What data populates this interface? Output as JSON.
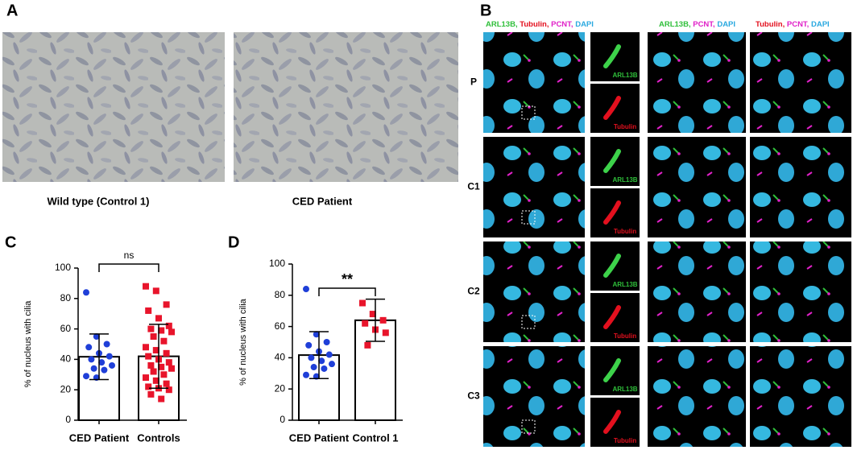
{
  "figure": {
    "panels": [
      "A",
      "B",
      "C",
      "D"
    ],
    "captions": [
      "Wild type (Control 1)",
      "CED Patient"
    ],
    "headers": [
      [
        "ARL13B,",
        "Tubulin,",
        "PCNT,",
        "DAPI"
      ],
      [
        "ARL13B,",
        "PCNT,",
        "DAPI"
      ],
      [
        "Tubulin,",
        "PCNT,",
        "DAPI"
      ]
    ],
    "rows": [
      {
        "label": "P",
        "inset_top": "ARL13B",
        "inset_bottom": "Tubulin"
      },
      {
        "label": "C1",
        "inset_top": "ARL13B",
        "inset_bottom": "Tubulin"
      },
      {
        "label": "C2",
        "inset_top": "ARL13B",
        "inset_bottom": "Tubulin"
      },
      {
        "label": "C3",
        "inset_top": "ARL13B",
        "inset_bottom": "Tubulin"
      }
    ]
  },
  "chart_data": [
    {
      "type": "bar",
      "ylabel": "% of nucleus with cilia",
      "categories": [
        "CED Patient",
        "Controls"
      ],
      "values": [
        41.7,
        42
      ],
      "errors": [
        15,
        21
      ],
      "points": [
        [
          84,
          55,
          50,
          48,
          44,
          42,
          40,
          38,
          36,
          34,
          33,
          29,
          28
        ],
        [
          88,
          85,
          76,
          72,
          67,
          62,
          60,
          59,
          58,
          55,
          52,
          48,
          46,
          44,
          42,
          40,
          38,
          36,
          35,
          34,
          32,
          30,
          28,
          26,
          24,
          22,
          21,
          20,
          17,
          14
        ]
      ],
      "point_colors": [
        "#1f3fd8",
        "#e8142b"
      ],
      "point_markers": [
        "circle",
        "square"
      ],
      "ylim": [
        0,
        100
      ],
      "yticks": [
        0,
        20,
        40,
        60,
        80,
        100
      ],
      "annotation": "ns"
    },
    {
      "type": "bar",
      "ylabel": "% of nucleus with cilia",
      "categories": [
        "CED Patient",
        "Control 1"
      ],
      "values": [
        41.7,
        64
      ],
      "errors": [
        15,
        13.5
      ],
      "points": [
        [
          84,
          55,
          50,
          48,
          44,
          42,
          40,
          38,
          36,
          34,
          33,
          29,
          28
        ],
        [
          75,
          68,
          64,
          62,
          58,
          56,
          48
        ]
      ],
      "point_colors": [
        "#1f3fd8",
        "#e8142b"
      ],
      "point_markers": [
        "circle",
        "square"
      ],
      "ylim": [
        0,
        100
      ],
      "yticks": [
        0,
        20,
        40,
        60,
        80,
        100
      ],
      "annotation": "**"
    }
  ]
}
